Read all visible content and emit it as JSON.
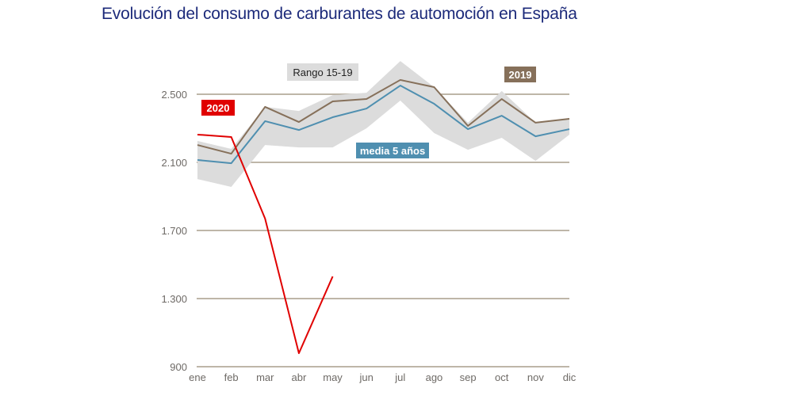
{
  "chart_data": {
    "type": "line",
    "title": "Evolución del consumo de carburantes de automoción en España",
    "xlabel": "",
    "ylabel": "",
    "categories": [
      "ene",
      "feb",
      "mar",
      "abr",
      "may",
      "jun",
      "jul",
      "ago",
      "sep",
      "oct",
      "nov",
      "dic"
    ],
    "ylim": [
      900,
      2500
    ],
    "yticks": [
      900,
      1300,
      1700,
      2100,
      2500
    ],
    "ytick_labels": [
      "900",
      "1.300",
      "1.700",
      "2.100",
      "2.500"
    ],
    "grid": true,
    "band": {
      "name": "Rango 15-19",
      "color": "#dcdcdc",
      "upper": [
        2226,
        2179,
        2426,
        2402,
        2495,
        2509,
        2695,
        2542,
        2333,
        2519,
        2333,
        2356
      ],
      "lower": [
        2002,
        1956,
        2202,
        2188,
        2188,
        2300,
        2463,
        2272,
        2174,
        2244,
        2109,
        2263
      ]
    },
    "series": [
      {
        "name": "2019",
        "color": "#86705a",
        "values": [
          2202,
          2151,
          2426,
          2337,
          2458,
          2472,
          2584,
          2542,
          2314,
          2472,
          2333,
          2356
        ]
      },
      {
        "name": "media 5 años",
        "color": "#4f8fb0",
        "values": [
          2114,
          2095,
          2342,
          2290,
          2365,
          2416,
          2551,
          2444,
          2295,
          2374,
          2253,
          2295
        ]
      },
      {
        "name": "2020",
        "color": "#e00000",
        "values": [
          2263,
          2249,
          1770,
          979,
          1430,
          null,
          null,
          null,
          null,
          null,
          null,
          null
        ]
      }
    ]
  }
}
